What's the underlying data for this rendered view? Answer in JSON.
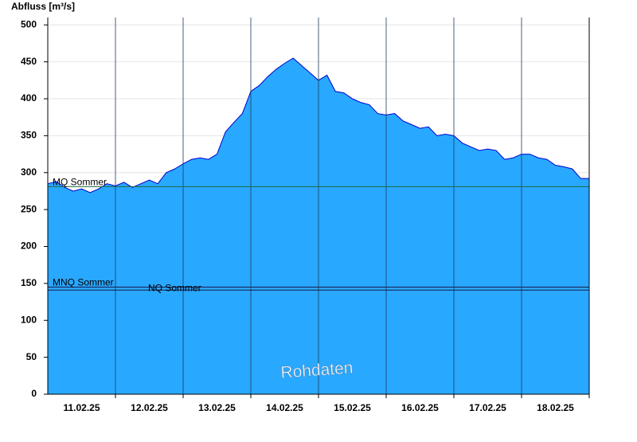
{
  "chart_data": {
    "type": "area",
    "y_label": "Abfluss [m³/s]",
    "watermark": "Rohdaten",
    "categories": [
      "11.02.25",
      "12.02.25",
      "13.02.25",
      "14.02.25",
      "15.02.25",
      "16.02.25",
      "17.02.25",
      "18.02.25"
    ],
    "values": [
      [
        285,
        288,
        280,
        275,
        278,
        273,
        278,
        285
      ],
      [
        282,
        287,
        280,
        285,
        290,
        285,
        300,
        305
      ],
      [
        312,
        318,
        320,
        318,
        325,
        355,
        368,
        380
      ],
      [
        410,
        418,
        430,
        440,
        448,
        455,
        445,
        435
      ],
      [
        425,
        432,
        410,
        408,
        400,
        395,
        392,
        380
      ],
      [
        378,
        380,
        370,
        365,
        360,
        362,
        350,
        352
      ],
      [
        350,
        340,
        335,
        330,
        332,
        330,
        318,
        320
      ],
      [
        325,
        325,
        320,
        318,
        310,
        308,
        305,
        292
      ]
    ],
    "color": "#29a8ff",
    "line_color": "#0000cc",
    "ref_lines": [
      {
        "label": "MQ Sommer",
        "value": 281
      },
      {
        "label": "MNQ Sommer",
        "value": 145
      },
      {
        "label": "NQ Sommer",
        "value": 141
      }
    ],
    "ylim": [
      0,
      510
    ],
    "yticks": [
      0,
      50,
      100,
      150,
      200,
      250,
      300,
      350,
      400,
      450,
      500
    ],
    "grid": true
  }
}
